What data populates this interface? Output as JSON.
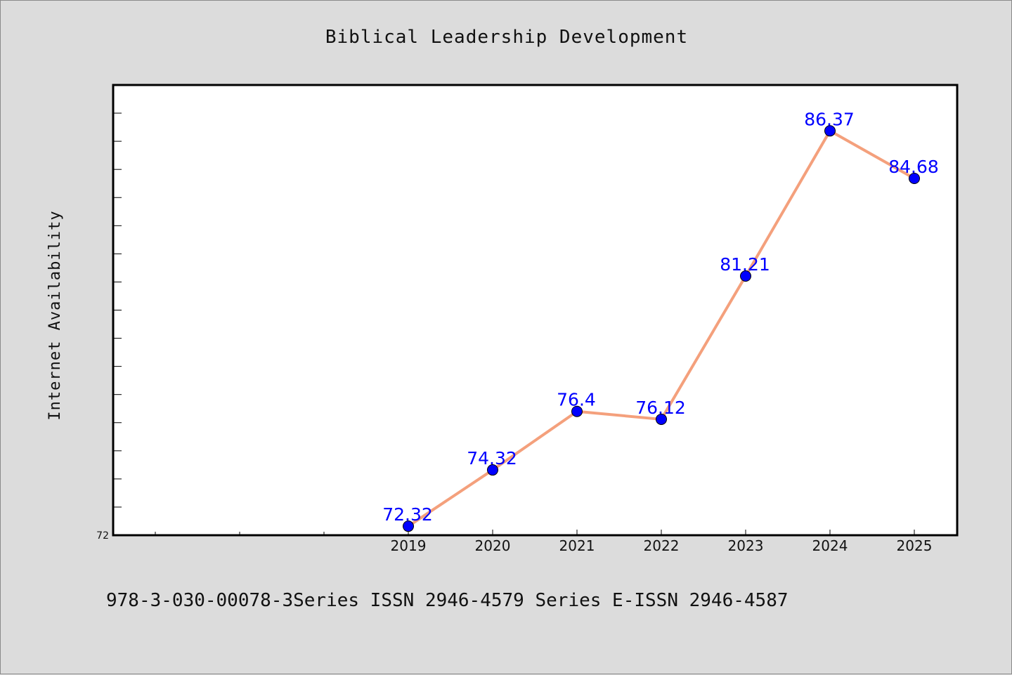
{
  "footer": {
    "text": "978-3-030-00078-3Series ISSN 2946-4579 Series E-ISSN 2946-4587"
  },
  "chart_data": {
    "type": "line",
    "title": "Biblical Leadership Development",
    "xlabel": "",
    "ylabel": "Internet Availability",
    "categories": [
      "2019",
      "2020",
      "2021",
      "2022",
      "2023",
      "2024",
      "2025"
    ],
    "series": [
      {
        "values": [
          72.32,
          74.32,
          76.4,
          76.12,
          81.21,
          86.37,
          84.68
        ],
        "line_color": "#f4a07c",
        "marker_color": "#0000ff",
        "label_color": "#0000ff"
      }
    ],
    "ytick_labels": [
      "72"
    ],
    "ylim": [
      72,
      88
    ],
    "grid": false,
    "legend": "none",
    "data_labels": true,
    "background": "#ffffff",
    "figure_background": "#dcdcdc"
  }
}
